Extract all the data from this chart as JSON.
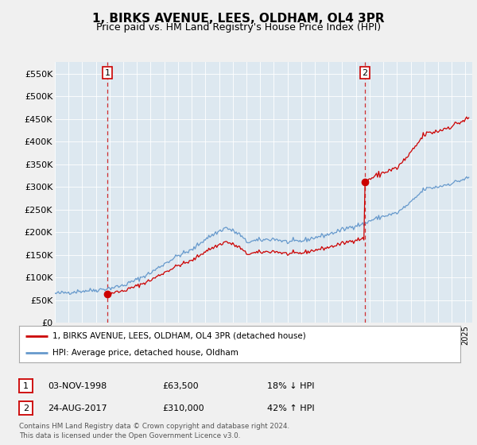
{
  "title": "1, BIRKS AVENUE, LEES, OLDHAM, OL4 3PR",
  "subtitle": "Price paid vs. HM Land Registry's House Price Index (HPI)",
  "ylabel_ticks": [
    "£0",
    "£50K",
    "£100K",
    "£150K",
    "£200K",
    "£250K",
    "£300K",
    "£350K",
    "£400K",
    "£450K",
    "£500K",
    "£550K"
  ],
  "ytick_values": [
    0,
    50000,
    100000,
    150000,
    200000,
    250000,
    300000,
    350000,
    400000,
    450000,
    500000,
    550000
  ],
  "ylim": [
    0,
    575000
  ],
  "xlim_start": 1995.0,
  "xlim_end": 2025.5,
  "sale1_x": 1998.84,
  "sale1_y": 63500,
  "sale1_label": "1",
  "sale1_vline_x": 1998.84,
  "sale2_x": 2017.65,
  "sale2_y": 310000,
  "sale2_label": "2",
  "sale2_vline_x": 2017.65,
  "legend_line1": "1, BIRKS AVENUE, LEES, OLDHAM, OL4 3PR (detached house)",
  "legend_line2": "HPI: Average price, detached house, Oldham",
  "table_row1": [
    "1",
    "03-NOV-1998",
    "£63,500",
    "18% ↓ HPI"
  ],
  "table_row2": [
    "2",
    "24-AUG-2017",
    "£310,000",
    "42% ↑ HPI"
  ],
  "footer": "Contains HM Land Registry data © Crown copyright and database right 2024.\nThis data is licensed under the Open Government Licence v3.0.",
  "sale_color": "#cc0000",
  "hpi_color": "#6699cc",
  "background_color": "#f0f0f0",
  "plot_bg_color": "#dde8f0",
  "grid_color": "#ffffff",
  "title_fontsize": 11,
  "subtitle_fontsize": 9
}
